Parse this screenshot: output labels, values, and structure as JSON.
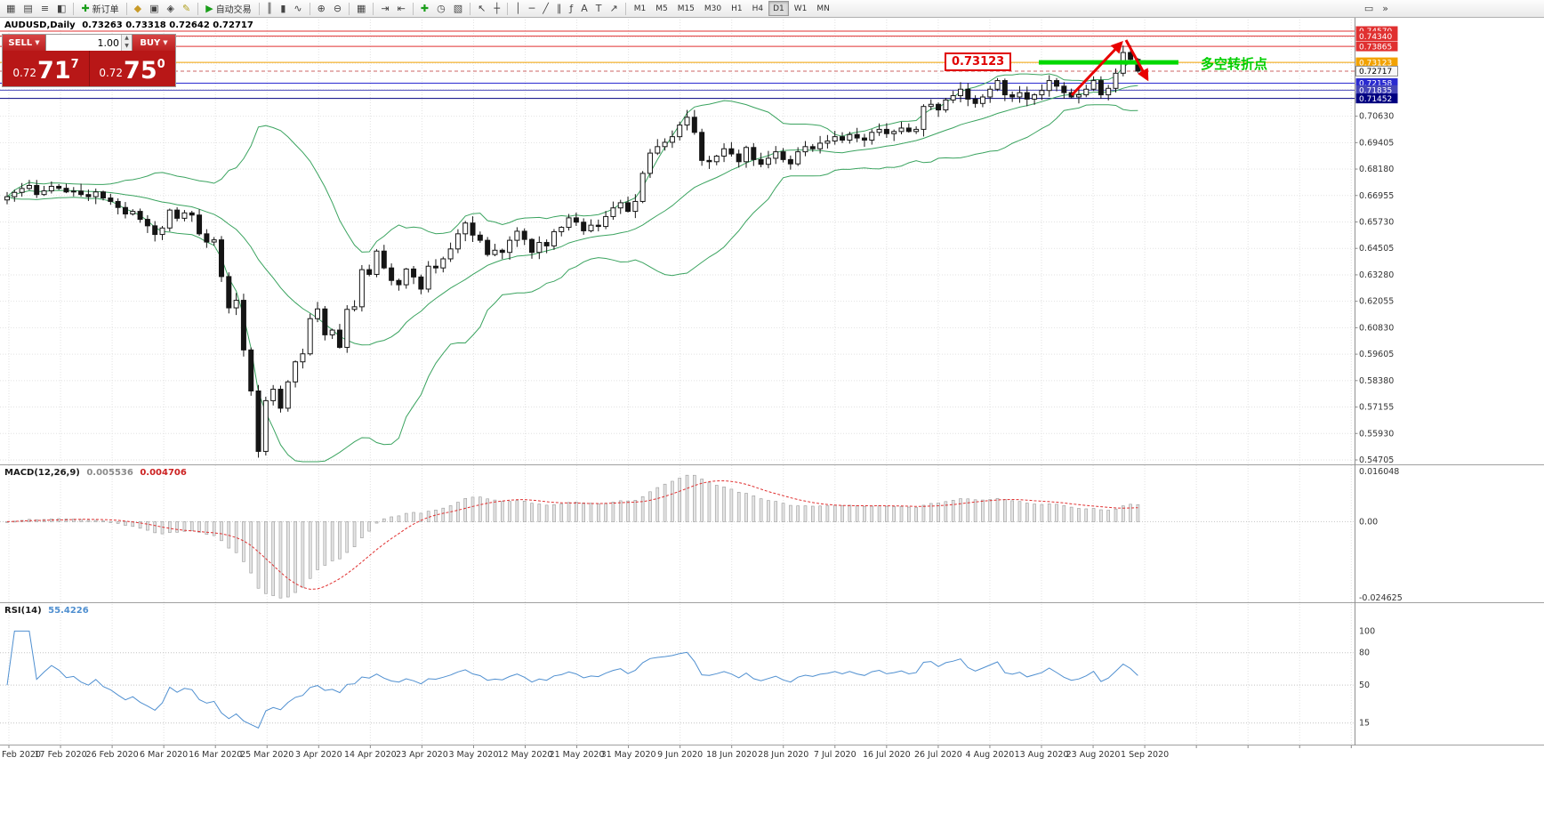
{
  "toolbar": {
    "groups": [
      {
        "items": [
          {
            "name": "new-chart-button",
            "glyph": "▦"
          },
          {
            "name": "chart-profiles-button",
            "glyph": "▤"
          },
          {
            "name": "market-watch-button",
            "glyph": "≡"
          },
          {
            "name": "data-window-button",
            "glyph": "◧"
          }
        ]
      },
      {
        "items": [
          {
            "name": "new-order-button",
            "glyph": "✚",
            "glyph_color": "#1a9e1a",
            "label": "新订单"
          }
        ]
      },
      {
        "items": [
          {
            "name": "navigator-button",
            "glyph": "◆",
            "glyph_color": "#c89a28"
          },
          {
            "name": "terminal-button",
            "glyph": "▣"
          },
          {
            "name": "strategy-tester-button",
            "glyph": "◈"
          },
          {
            "name": "metaeditor-button",
            "glyph": "✎",
            "glyph_color": "#b0a020"
          }
        ]
      },
      {
        "items": [
          {
            "name": "autotrading-button",
            "glyph": "▶",
            "glyph_color": "#1a9e1a",
            "label": "自动交易"
          }
        ]
      },
      {
        "items": [
          {
            "name": "bar-chart-button",
            "glyph": "║"
          },
          {
            "name": "candlestick-chart-button",
            "glyph": "▮"
          },
          {
            "name": "line-chart-button",
            "glyph": "∿"
          }
        ]
      },
      {
        "items": [
          {
            "name": "zoom-in-button",
            "glyph": "⊕"
          },
          {
            "name": "zoom-out-button",
            "glyph": "⊖"
          }
        ]
      },
      {
        "items": [
          {
            "name": "tile-windows-button",
            "glyph": "▦"
          }
        ]
      },
      {
        "items": [
          {
            "name": "auto-scroll-button",
            "glyph": "⇥"
          },
          {
            "name": "chart-shift-button",
            "glyph": "⇤"
          }
        ]
      },
      {
        "items": [
          {
            "name": "indicators-button",
            "glyph": "✚",
            "glyph_color": "#1a9e1a"
          },
          {
            "name": "periods-button",
            "glyph": "◷"
          },
          {
            "name": "templates-button",
            "glyph": "▧"
          }
        ]
      },
      {
        "items": [
          {
            "name": "cursor-button",
            "glyph": "↖"
          },
          {
            "name": "crosshair-button",
            "glyph": "┼"
          }
        ]
      },
      {
        "items": [
          {
            "name": "vertical-line-button",
            "glyph": "│"
          },
          {
            "name": "horizontal-line-button",
            "glyph": "─"
          },
          {
            "name": "trendline-button",
            "glyph": "╱"
          },
          {
            "name": "channel-button",
            "glyph": "∥"
          },
          {
            "name": "fibonacci-button",
            "glyph": "ƒ"
          },
          {
            "name": "text-button",
            "glyph": "A"
          },
          {
            "name": "label-button",
            "glyph": "T"
          },
          {
            "name": "arrows-button",
            "glyph": "↗"
          }
        ]
      }
    ],
    "timeframes": [
      "M1",
      "M5",
      "M15",
      "M30",
      "H1",
      "H4",
      "D1",
      "W1",
      "MN"
    ],
    "active_timeframe": "D1",
    "right_icons": [
      {
        "name": "chart-list-button",
        "glyph": "▭"
      },
      {
        "name": "docking-button",
        "glyph": "»"
      }
    ]
  },
  "chart": {
    "title_symbol": "AUDUSD,Daily",
    "title_ohlc": "0.73263 0.73318 0.72642 0.72717"
  },
  "trade_panel": {
    "sell_label": "SELL",
    "buy_label": "BUY",
    "volume": "1.00",
    "sell_prefix": "0.72",
    "sell_big": "71",
    "sell_sup": "7",
    "buy_prefix": "0.72",
    "buy_big": "75",
    "buy_sup": "0"
  },
  "price_axis": {
    "gridline_prices": [
      0.7063,
      0.69405,
      0.6818,
      0.66955,
      0.6573,
      0.64505,
      0.6328,
      0.62055,
      0.6083,
      0.59605,
      0.5838,
      0.57155,
      0.5593,
      0.54705
    ],
    "levels": [
      {
        "price": 0.7457,
        "label": "0.74570",
        "line_color": "#e03030",
        "tag_color": "#e03030",
        "text_color": "#ffffff",
        "dashed": false
      },
      {
        "price": 0.7434,
        "label": "0.74340",
        "line_color": "#e03030",
        "tag_color": "#e03030",
        "text_color": "#ffffff",
        "dashed": false
      },
      {
        "price": 0.73865,
        "label": "0.73865",
        "line_color": "#e03030",
        "tag_color": "#e03030",
        "text_color": "#ffffff",
        "dashed": false
      },
      {
        "price": 0.73123,
        "label": "0.73123",
        "line_color": "#f2a200",
        "tag_color": "#f2a200",
        "text_color": "#ffffff",
        "dashed": false
      },
      {
        "price": 0.72717,
        "label": "0.72717",
        "line_color": "#cc6666",
        "tag_color": "#f8f8f8",
        "text_color": "#000000",
        "dashed": true,
        "current": true
      },
      {
        "price": 0.72158,
        "label": "0.72158",
        "line_color": "#2a2ad0",
        "tag_color": "#2a2ad0",
        "text_color": "#ffffff",
        "dashed": false
      },
      {
        "price": 0.71835,
        "label": "0.71835",
        "line_color": "#4646b8",
        "tag_color": "#4646b8",
        "text_color": "#ffffff",
        "dashed": false
      },
      {
        "price": 0.71452,
        "label": "0.71452",
        "line_color": "#000080",
        "tag_color": "#000080",
        "text_color": "#ffffff",
        "dashed": false
      }
    ]
  },
  "indicator_macd": {
    "name": "MACD(12,26,9)",
    "value_main": "0.005536",
    "value_signal": "0.004706",
    "axis_labels": [
      {
        "value": 0.016048,
        "label": "0.016048"
      },
      {
        "value": 0,
        "label": "0.00"
      },
      {
        "value": -0.024625,
        "label": "-0.024625"
      }
    ]
  },
  "indicator_rsi": {
    "name": "RSI(14)",
    "value": "55.4226",
    "axis_labels": [
      {
        "value": 100,
        "label": "100"
      },
      {
        "value": 80,
        "label": "80"
      },
      {
        "value": 50,
        "label": "50"
      },
      {
        "value": 15,
        "label": "15"
      }
    ],
    "levels": [
      80,
      50,
      15
    ]
  },
  "dates": [
    "Feb 2020",
    "17 Feb 2020",
    "26 Feb 2020",
    "6 Mar 2020",
    "16 Mar 2020",
    "25 Mar 2020",
    "3 Apr 2020",
    "14 Apr 2020",
    "23 Apr 2020",
    "3 May 2020",
    "12 May 2020",
    "21 May 2020",
    "31 May 2020",
    "9 Jun 2020",
    "18 Jun 2020",
    "28 Jun 2020",
    "7 Jul 2020",
    "16 Jul 2020",
    "26 Jul 2020",
    "4 Aug 2020",
    "13 Aug 2020",
    "23 Aug 2020",
    "1 Sep 2020"
  ],
  "annotations": {
    "price_callout": "0.73123",
    "turning_point_text": "多空转折点",
    "green_segment_price": 0.73123,
    "colors": {
      "green": "#00d800",
      "red": "#e80000"
    }
  },
  "colors": {
    "up_candle": "#ffffff",
    "down_candle": "#151515",
    "candle_outline": "#151515",
    "bollinger": "#3aa35f",
    "macd_hist_fill": "#e4e4e4",
    "macd_hist_stroke": "#9a9a9a",
    "macd_signal": "#e03030",
    "rsi_line": "#4f8fd0",
    "grid": "#e2e2e2",
    "axis_text": "#333333"
  },
  "chart_data": {
    "type": "candlestick",
    "symbol": "AUDUSD",
    "period": "Daily",
    "current_bar": {
      "open": 0.73263,
      "high": 0.73318,
      "low": 0.72642,
      "close": 0.72717
    },
    "price_range": [
      0.54705,
      0.7457
    ],
    "overlays": [
      "Bollinger Bands(20,2)"
    ],
    "panes": [
      "MACD(12,26,9)",
      "RSI(14)"
    ],
    "closes": [
      0.669,
      0.671,
      0.6728,
      0.6742,
      0.67,
      0.6717,
      0.6738,
      0.6729,
      0.6712,
      0.6716,
      0.67,
      0.669,
      0.6712,
      0.6684,
      0.6668,
      0.664,
      0.661,
      0.6622,
      0.6585,
      0.6555,
      0.6515,
      0.6545,
      0.6628,
      0.659,
      0.6615,
      0.6605,
      0.6518,
      0.648,
      0.649,
      0.632,
      0.6175,
      0.621,
      0.598,
      0.579,
      0.551,
      0.5745,
      0.5798,
      0.571,
      0.5832,
      0.5925,
      0.5962,
      0.6125,
      0.617,
      0.605,
      0.6072,
      0.5992,
      0.6168,
      0.618,
      0.6352,
      0.633,
      0.6438,
      0.636,
      0.6302,
      0.6282,
      0.6355,
      0.6318,
      0.6262,
      0.6368,
      0.636,
      0.6402,
      0.6448,
      0.6518,
      0.6568,
      0.6512,
      0.6488,
      0.6422,
      0.6442,
      0.6432,
      0.6488,
      0.653,
      0.6492,
      0.6432,
      0.6478,
      0.6462,
      0.6528,
      0.6548,
      0.6592,
      0.6572,
      0.6532,
      0.6558,
      0.6552,
      0.6598,
      0.6638,
      0.6662,
      0.6622,
      0.6668,
      0.6798,
      0.6892,
      0.6922,
      0.6942,
      0.6968,
      0.7022,
      0.7058,
      0.6988,
      0.6858,
      0.6852,
      0.6878,
      0.6912,
      0.6888,
      0.6852,
      0.6918,
      0.6862,
      0.684,
      0.6868,
      0.6898,
      0.6862,
      0.6842,
      0.6898,
      0.6922,
      0.6912,
      0.6938,
      0.6948,
      0.6968,
      0.6952,
      0.6978,
      0.6962,
      0.6952,
      0.6988,
      0.7002,
      0.6982,
      0.6992,
      0.7008,
      0.6992,
      0.7002,
      0.7108,
      0.7118,
      0.7092,
      0.7138,
      0.7158,
      0.7188,
      0.7142,
      0.7122,
      0.7152,
      0.7188,
      0.7228,
      0.7162,
      0.7152,
      0.7172,
      0.7142,
      0.7162,
      0.7182,
      0.7228,
      0.7202,
      0.7172,
      0.7152,
      0.7162,
      0.7188,
      0.7228,
      0.7162,
      0.7192,
      0.7262,
      0.7358,
      0.73263,
      0.72717
    ]
  }
}
